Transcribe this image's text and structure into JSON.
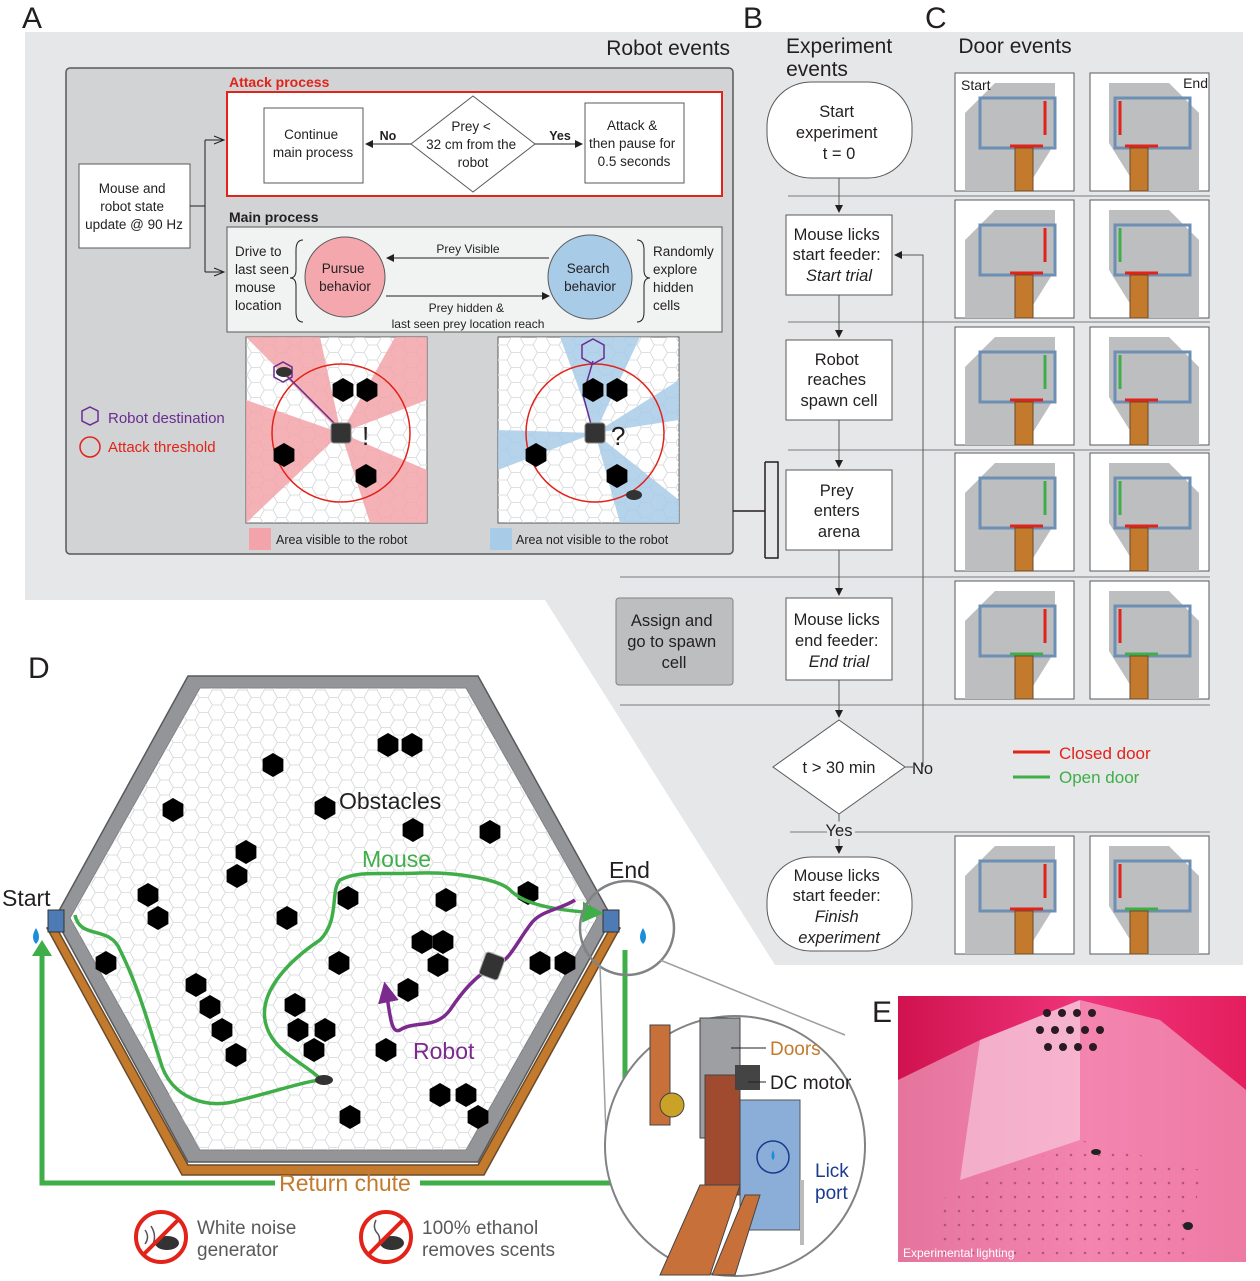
{
  "panel_letters": {
    "a": "A",
    "b": "B",
    "c": "C",
    "d": "D",
    "e": "E"
  },
  "robot_events": {
    "title": "Robot events",
    "state_update": [
      "Mouse and",
      "robot state",
      "update @ 90 Hz"
    ],
    "attack_process": {
      "title": "Attack process",
      "continue": [
        "Continue",
        "main process"
      ],
      "decision": [
        "Prey <",
        "32 cm from the",
        "robot"
      ],
      "no": "No",
      "yes": "Yes",
      "attack": [
        "Attack &",
        "then pause for",
        "0.5 seconds"
      ]
    },
    "main_process": {
      "title": "Main process",
      "drive": [
        "Drive to",
        "last seen",
        "mouse",
        "location"
      ],
      "pursue": [
        "Pursue",
        "behavior"
      ],
      "search": [
        "Search",
        "behavior"
      ],
      "explore": [
        "Randomly",
        "explore",
        "hidden",
        "cells"
      ],
      "prey_visible": "Prey Visible",
      "prey_hidden": [
        "Prey hidden &",
        "last seen prey location reach"
      ]
    },
    "legend": {
      "destination": "Robot destination",
      "threshold": "Attack threshold"
    },
    "pursue_symbol": "!",
    "search_symbol": "?",
    "area_visible": "Area visible to the robot",
    "area_not_visible": "Area not visible to the robot",
    "colors": {
      "attack_red": "#e2231a",
      "purple": "#6b2c91",
      "pink": "#f2a4aa",
      "blue": "#a8cbe8",
      "gray_panel": "#e6e7e8"
    }
  },
  "experiment_events": {
    "title": [
      "Experiment",
      "events"
    ],
    "start": [
      "Start",
      "experiment",
      "t = 0"
    ],
    "lick_start": [
      "Mouse licks",
      "start feeder:"
    ],
    "lick_start_em": "Start trial",
    "robot_spawn": [
      "Robot",
      "reaches",
      "spawn cell"
    ],
    "prey_enters": [
      "Prey",
      "enters",
      "arena"
    ],
    "lick_end": [
      "Mouse licks",
      "end feeder:"
    ],
    "lick_end_em": "End trial",
    "decision": "t > 30 min",
    "no": "No",
    "yes": "Yes",
    "finish": [
      "Mouse licks",
      "start feeder:"
    ],
    "finish_em": [
      "Finish",
      "experiment"
    ],
    "assign": [
      "Assign and",
      "go to spawn",
      "cell"
    ]
  },
  "door_events": {
    "title": "Door events",
    "start_label": "Start",
    "end_label": "End",
    "closed": "Closed door",
    "open": "Open door",
    "colors": {
      "closed": "#e2231a",
      "open": "#3fae49"
    }
  },
  "arena": {
    "start": "Start",
    "end": "End",
    "obstacles": "Obstacles",
    "mouse": "Mouse",
    "robot": "Robot",
    "return_chute": "Return chute",
    "white_noise": [
      "White noise",
      "generator"
    ],
    "ethanol": [
      "100% ethanol",
      "removes scents"
    ],
    "doors": "Doors",
    "dc_motor": "DC motor",
    "lick_port": [
      "Lick",
      "port"
    ],
    "colors": {
      "mouse_path": "#3fae49",
      "robot_path": "#7b2a8e",
      "chute": "#c47a2c"
    }
  },
  "photo": {
    "caption": "Experimental lighting"
  }
}
